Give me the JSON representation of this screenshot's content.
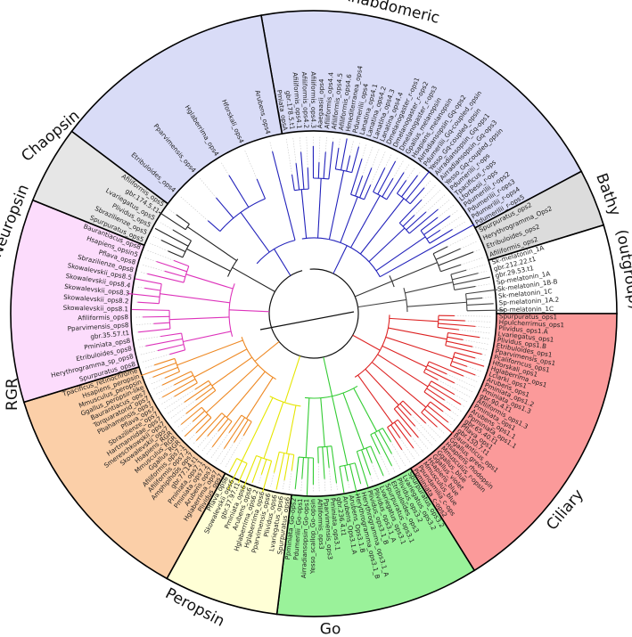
{
  "clades": [
    {
      "id": "rhabdomeric",
      "label": "Rhabdomeric",
      "fill": "#d9dcf7",
      "branch_color": "#2222bb",
      "tip_fill": "#e3e5fa",
      "tips": [
        "Pmiata_opsA",
        "gbr.178.5.t1",
        "Afiliformis_ops4.1",
        "Afiliformis_ops4.2",
        "Afiliformis_ops4.3",
        "Aaegaasii_ops4",
        "Afiliformis_ops4.4",
        "Afiliformis_ops4.5",
        "Afiliformis_ops4.6",
        "Hmediterranea_ops4",
        "Pdumerilii_ops4",
        "Lanatina_ops4.1",
        "Lanatina_ops4.2",
        "Lanatina_ops4.3",
        "Lanatina_ops4.4",
        "Dmelanogaster_r-ops1",
        "Dmelanogaster_r-ops2",
        "Dmelanogaster_r-ops3",
        "Gpallus_melanopsin",
        "Hsapiens_melanopsin",
        "Airradiansopsin_Gq-ops2",
        "Pdumerilii_Gq-coupled_opsin",
        "Yesso_Gq-coupled_opsin",
        "Airradiansopsin_Gq-ops1",
        "Airradiansopsin_Gq-ops3",
        "Yesso_Gq-coupled_opsin",
        "Pdumerilii_r-ops",
        "Tpacificus_r-ops",
        "Lforbesii_r-ops",
        "Pdumerilii_r-ops2",
        "Pdumerilii_r-ops3",
        "Pdumerilii_r-ops4",
        "Pdumerilii_r-ops5"
      ]
    },
    {
      "id": "bathy",
      "label": "Bathy",
      "fill": "#dcdcdc",
      "branch_color": "#333333",
      "tip_fill": "#e6e6e6",
      "tips": [
        "Spurpuratus_ops2",
        "Herythrogramma_Ops2",
        "Etribuloides_ops2",
        "Afiliformis_ops2"
      ]
    },
    {
      "id": "outgroup",
      "label": "(outgroup)",
      "fill": "#ffffff",
      "branch_color": "#444444",
      "tip_fill": "#ffffff",
      "tips": [
        "Sk-melatonin_1A",
        "gbr.212.22.t1",
        "gbr.29.53.t1",
        "Sp-melatonin_1A",
        "Sk-melatonin_1B-B",
        "Sk-melatonin_1C",
        "Sp-melatonin_1A.2",
        "Sp-melatonin_1C"
      ]
    },
    {
      "id": "ciliary",
      "label": "Ciliary",
      "fill": "#fb9a9a",
      "branch_color": "#dd2222",
      "tip_fill": "#fca8a8",
      "tips": [
        "Spurpuratus_ops1",
        "Hpulcherrimus_ops1",
        "Plividus_ops1.A",
        "Lvariegatus_ops1",
        "Plividus_ops1.B",
        "Etribuloides_ops1",
        "Pparvimensis_ops1",
        "Pcaliforncus_ops1",
        "Hforskali_ops1",
        "Hglaberrima_ops1",
        "Lclarki_ops1",
        "Arubens_ops1",
        "Pminiata_ops1.2",
        "Pminiata_ops1.3",
        "gbr.90.4.t1",
        "Afiliformis_ops1.3",
        "Pminiata_ops1",
        "Arubens_ops1.1",
        "Ppminiata_ops1.1",
        "gbr.65.40.t1",
        "Pflava_ops1",
        "gbr.150.7.t1",
        "Bauranticus_ops1",
        "Ggallus_green",
        "Hsapiens_rhodopsin",
        "Mmusculus_r-opsin",
        "Ggallus_blue",
        "Ggallus_violet",
        "Hsapiens_blue",
        "Mmusculus_blue",
        "Ppundamilia_c-ops",
        "Ppminiata_c-ops2"
      ]
    },
    {
      "id": "go",
      "label": "Go",
      "fill": "#9af29a",
      "branch_color": "#33cc33",
      "tip_fill": "#a8f5a8",
      "tips": [
        "Spurpuratus_ops3.2",
        "Lvariegatus_ops3.2",
        "Plividus_ops3.2",
        "Etribuloides_ops3",
        "Spurpuratus_ops3.1",
        "Lvariegatus_ops3.1",
        "Plividus_ops3.1_A",
        "Plividus_ops3.1_B",
        "Herythrogramma_ops3.1_A",
        "Herythrogramma_ops3.1_B",
        "Arubens_Ops3.1.B",
        "Arubens_Ops3.1.A",
        "gbr.236.4.t1",
        "Pminiata_ops3.1",
        "Pparvimensis_ops3",
        "Afiliformis_ops3",
        "Yesso_scallop_Go-opsin",
        "Airradiansopsin_Go-ops1",
        "Pdumerilii_Go-ops1",
        "Ppminiata_Go-ops2"
      ]
    },
    {
      "id": "peropsin",
      "label": "Peropsin",
      "fill": "#ffffd6",
      "branch_color": "#e6e600",
      "tip_fill": "#ffffe0",
      "tips": [
        "Spurpuratus_ops6",
        "Lvariegatus_ops6",
        "Plividus_ops6",
        "Pparvimensis_ops6",
        "Hglaberrima_ops6",
        "Hglaberrima_ops6.2",
        "Arubens_ops6",
        "Pminiata_ops6",
        "gbr.37.97.t1",
        "Skowalevskii_ops6",
        "Pflava_ops6"
      ]
    },
    {
      "id": "rgr",
      "label": "RGR",
      "fill": "#fbcfa8",
      "branch_color": "#ee8822",
      "tip_fill": "#fcd8b8",
      "tips": [
        "Plividus_ops7",
        "Hglaberrima_ops7",
        "Arubens_ops7",
        "Pminiata_ops7.2",
        "Pminiata_ops7.1",
        "gbr.77.14.t1",
        "Amphiplhdos_ops7",
        "Afiliformis_ops7.2",
        "Afiliformis_ops7.1",
        "Ggallus_RGR",
        "Mmusculus_RGR",
        "Hsapiens_RGR",
        "Skowalevskii_ops7",
        "Smereschkowskii_ops7",
        "Hartmannidae_ops7",
        "Sbrazilienze_ops7",
        "Pflava_ops7",
        "Pbahamensis_ops7",
        "Torquaratorid_ops7",
        "Baurantiacus_ops7",
        "Ggallus_peropsin-like",
        "Mmusculus_peropsin",
        "Hsapiens_peropsin",
        "Tpacificus_retinochrome"
      ]
    },
    {
      "id": "neuropsin",
      "label": "Neuropsin",
      "fill": "#fcdcfc",
      "branch_color": "#dd33bb",
      "tip_fill": "#fde6fd",
      "tips": [
        "Spurpuratus_ops8",
        "Herythrogramma_sp_ops8",
        "Etribuloides_ops8",
        "Pminiata_ops8",
        "gbr.35.57.t1",
        "Pparvimensis_ops8",
        "Afiliformis_ops8",
        "Skowalevskii_ops8.1",
        "Skowalevskii_ops8.2",
        "Skowalevskii_ops8.3",
        "Skowalevskii_ops8.4",
        "Skowalevskii_ops8.5",
        "Sbrazilienze_ops8",
        "Pflava_ops8",
        "Hsapiens_opsin5",
        "Baurantiacus_ops8"
      ]
    },
    {
      "id": "chaopsin",
      "label": "Chaopsin",
      "fill": "#e6e6e6",
      "branch_color": "#222222",
      "tip_fill": "#eeeeee",
      "tips": [
        "Spurpuratus_ops5",
        "Sbrazilienze_ops5",
        "Plividus_ops5",
        "Lvariegatus_ops5",
        "gbr.174.5.t1",
        "Afiliformis_ops5"
      ]
    },
    {
      "id": "rhabdomeric-b",
      "label": "",
      "fill": "#d9dcf7",
      "branch_color": "#2222bb",
      "tip_fill": "#e3e5fa",
      "tips": [
        "Etribuloides_ops4",
        "Pparvimensis_ops4",
        "Hglaberrima_ops4",
        "Hforskali_ops4",
        "Arubens_ops4"
      ]
    }
  ],
  "colors": {
    "ring_border": "#000000",
    "guide": "#c8c8c8",
    "root": "#111111"
  }
}
